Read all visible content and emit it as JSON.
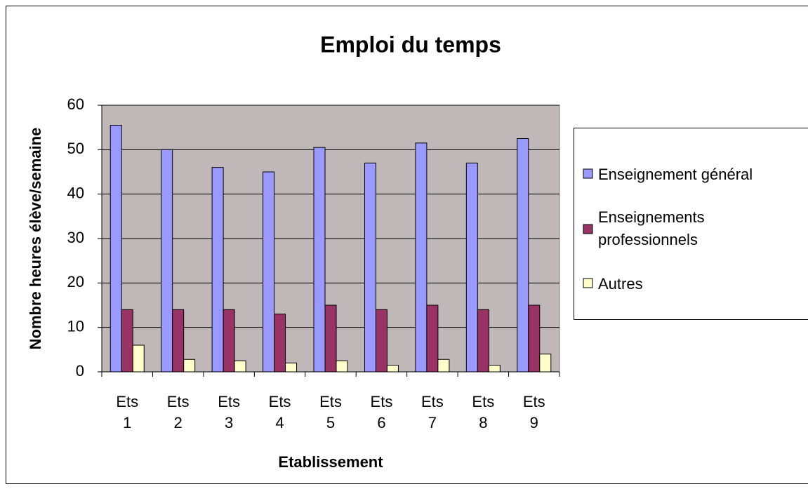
{
  "chart_data": {
    "type": "bar",
    "title": "Emploi du temps",
    "x_label": "Etablissement",
    "y_label": "Nombre heures élève/semaine",
    "categories": [
      "Ets 1",
      "Ets 2",
      "Ets 3",
      "Ets 4",
      "Ets 5",
      "Ets 6",
      "Ets 7",
      "Ets 8",
      "Ets 9"
    ],
    "series": [
      {
        "name": "Enseignement général",
        "color": "#9999ff",
        "values": [
          55.5,
          50,
          46,
          45,
          50.5,
          47,
          51.5,
          47,
          52.5
        ]
      },
      {
        "name": "Enseignements professionnels",
        "color": "#993366",
        "values": [
          14,
          14,
          14,
          13,
          15,
          14,
          15,
          14,
          15
        ]
      },
      {
        "name": "Autres",
        "color": "#ffffcc",
        "values": [
          6,
          2.8,
          2.5,
          2,
          2.5,
          1.5,
          2.8,
          1.5,
          4
        ]
      }
    ],
    "ylim": [
      0,
      60
    ],
    "yticks": [
      0,
      10,
      20,
      30,
      40,
      50,
      60
    ],
    "grid": true,
    "legend": "right"
  }
}
